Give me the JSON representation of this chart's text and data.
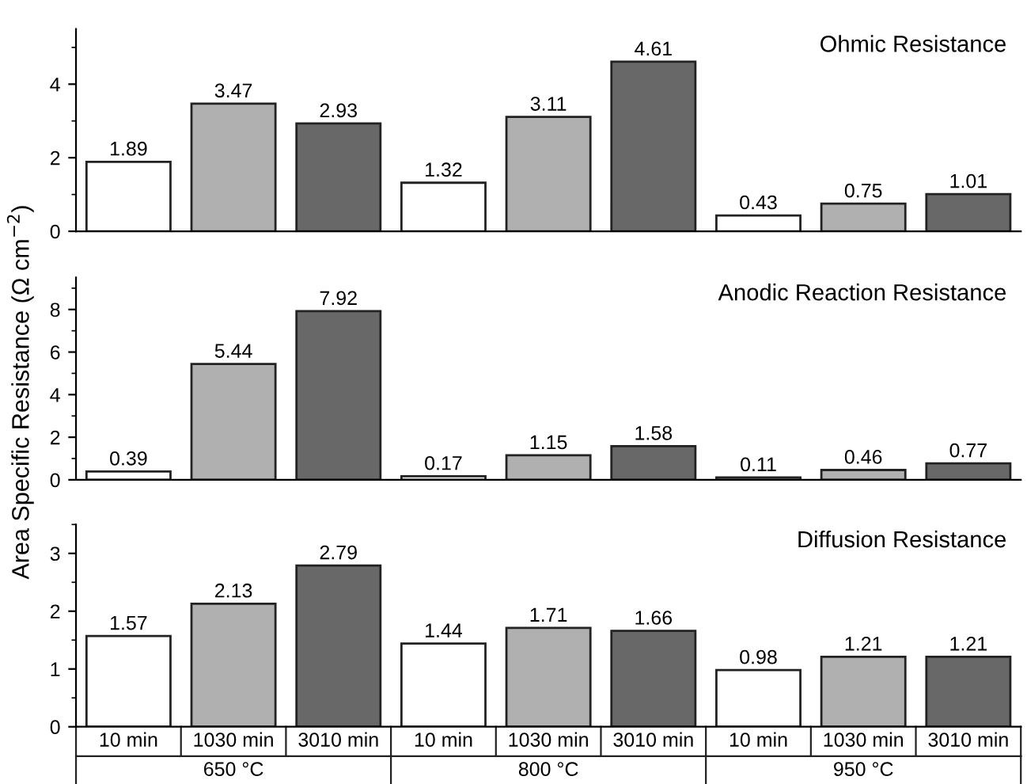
{
  "chart_data": [
    {
      "type": "bar",
      "title": "Ohmic Resistance",
      "categories": [
        null,
        null,
        null,
        null,
        null,
        null,
        null,
        null,
        null
      ],
      "values": [
        1.89,
        3.47,
        2.93,
        1.32,
        3.11,
        4.61,
        0.43,
        0.75,
        1.01
      ],
      "colors": [
        "#ffffff",
        "#b0b0b0",
        "#686868",
        "#ffffff",
        "#b0b0b0",
        "#686868",
        "#ffffff",
        "#b0b0b0",
        "#686868"
      ],
      "ylim": [
        0,
        5.5
      ],
      "yticks": [
        0,
        2,
        4
      ],
      "data_labels": true,
      "tick_labels": "y"
    },
    {
      "type": "bar",
      "title": "Anodic Reaction Resistance",
      "ylabel": "Area Specific Resistance (Ω cm$^{−2}$)",
      "categories": [
        null,
        null,
        null,
        null,
        null,
        null,
        null,
        null,
        null
      ],
      "values": [
        0.39,
        5.44,
        7.92,
        0.17,
        1.15,
        1.58,
        0.11,
        0.46,
        0.77
      ],
      "colors": [
        "#ffffff",
        "#b0b0b0",
        "#686868",
        "#ffffff",
        "#b0b0b0",
        "#686868",
        "#ffffff",
        "#b0b0b0",
        "#686868"
      ],
      "ylim": [
        0,
        9.5
      ],
      "yticks": [
        0,
        2,
        4,
        6,
        8
      ],
      "data_labels": true,
      "tick_labels": "y"
    },
    {
      "type": "bar",
      "title": "Diffusion Resistance",
      "categories": [
        "10 min",
        "1030 min",
        "3010 min",
        "10 min",
        "1030 min",
        "3010 min",
        "10 min",
        "1030 min",
        "3010 min"
      ],
      "values": [
        1.57,
        2.13,
        2.79,
        1.44,
        1.71,
        1.66,
        0.98,
        1.21,
        1.21
      ],
      "colors": [
        "#ffffff",
        "#b0b0b0",
        "#686868",
        "#ffffff",
        "#b0b0b0",
        "#686868",
        "#ffffff",
        "#b0b0b0",
        "#686868"
      ],
      "ylim": [
        0,
        3.5
      ],
      "yticks": [
        0,
        1,
        2,
        3
      ],
      "data_labels": true,
      "annotations": [
        "650 °C",
        "800 °C",
        "950 °C"
      ]
    }
  ]
}
